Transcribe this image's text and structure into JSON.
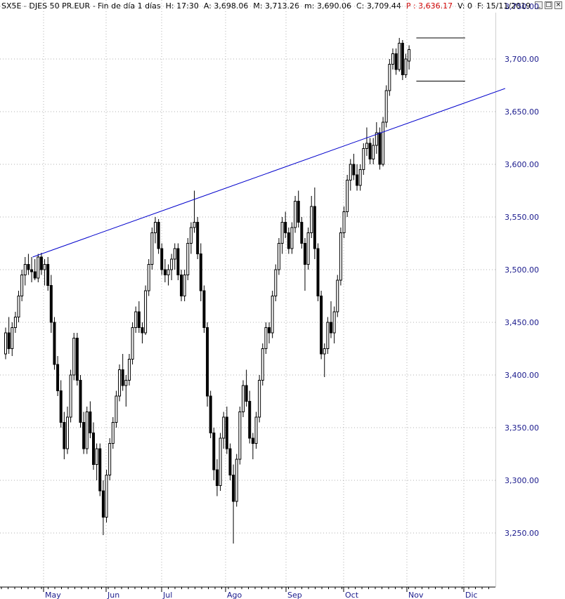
{
  "header": {
    "symbol": "SX5E - DJES 50 PR.EUR - Fin de día 1 días",
    "h": "H: 17:30",
    "a": "A: 3,698.06",
    "m": "M: 3,713.26",
    "mm": "m: 3,690.06",
    "c": "C: 3,709.44",
    "p": "P : 3,636.17",
    "v": "V: 0",
    "f": "F: 15/11/2019"
  },
  "window_buttons": [
    "_",
    "□",
    "×"
  ],
  "colors": {
    "axis_text": "#1a1a8c",
    "trendline": "#0000cc",
    "candle": "#000000",
    "grid": "#b0b0b0"
  },
  "chart_data": {
    "type": "candlestick",
    "y_axis": {
      "min": 3240,
      "max": 3750,
      "ticks": [
        3250,
        3300,
        3350,
        3400,
        3450,
        3500,
        3550,
        3600,
        3650,
        3700,
        3750
      ],
      "side": "right"
    },
    "x_axis": {
      "months": [
        "May",
        "Jun",
        "Jul",
        "Ago",
        "Sep",
        "Oct",
        "Nov",
        "Dic"
      ]
    },
    "grid": true,
    "candles": [
      [
        3420,
        3445,
        3415,
        3440
      ],
      [
        3440,
        3455,
        3420,
        3425
      ],
      [
        3425,
        3450,
        3418,
        3445
      ],
      [
        3445,
        3460,
        3440,
        3455
      ],
      [
        3455,
        3480,
        3450,
        3475
      ],
      [
        3475,
        3500,
        3470,
        3495
      ],
      [
        3495,
        3512,
        3485,
        3505
      ],
      [
        3505,
        3515,
        3495,
        3500
      ],
      [
        3500,
        3512,
        3488,
        3498
      ],
      [
        3498,
        3510,
        3490,
        3492
      ],
      [
        3492,
        3515,
        3488,
        3512
      ],
      [
        3512,
        3516,
        3495,
        3500
      ],
      [
        3500,
        3510,
        3485,
        3505
      ],
      [
        3505,
        3512,
        3480,
        3485
      ],
      [
        3485,
        3495,
        3440,
        3450
      ],
      [
        3450,
        3455,
        3405,
        3410
      ],
      [
        3410,
        3418,
        3380,
        3385
      ],
      [
        3385,
        3395,
        3350,
        3355
      ],
      [
        3355,
        3365,
        3320,
        3330
      ],
      [
        3330,
        3370,
        3325,
        3360
      ],
      [
        3360,
        3405,
        3355,
        3400
      ],
      [
        3400,
        3440,
        3395,
        3435
      ],
      [
        3435,
        3440,
        3390,
        3395
      ],
      [
        3395,
        3400,
        3350,
        3355
      ],
      [
        3355,
        3365,
        3325,
        3330
      ],
      [
        3330,
        3370,
        3325,
        3365
      ],
      [
        3365,
        3375,
        3340,
        3345
      ],
      [
        3345,
        3355,
        3310,
        3315
      ],
      [
        3315,
        3335,
        3300,
        3330
      ],
      [
        3330,
        3335,
        3285,
        3290
      ],
      [
        3290,
        3300,
        3248,
        3265
      ],
      [
        3265,
        3310,
        3260,
        3305
      ],
      [
        3305,
        3340,
        3300,
        3335
      ],
      [
        3335,
        3360,
        3330,
        3355
      ],
      [
        3355,
        3385,
        3350,
        3380
      ],
      [
        3380,
        3410,
        3375,
        3405
      ],
      [
        3405,
        3420,
        3385,
        3390
      ],
      [
        3390,
        3400,
        3370,
        3395
      ],
      [
        3395,
        3420,
        3390,
        3415
      ],
      [
        3415,
        3450,
        3410,
        3445
      ],
      [
        3445,
        3465,
        3440,
        3460
      ],
      [
        3460,
        3470,
        3440,
        3445
      ],
      [
        3445,
        3450,
        3430,
        3440
      ],
      [
        3440,
        3485,
        3438,
        3480
      ],
      [
        3480,
        3510,
        3475,
        3505
      ],
      [
        3505,
        3540,
        3500,
        3535
      ],
      [
        3535,
        3550,
        3525,
        3545
      ],
      [
        3545,
        3548,
        3515,
        3520
      ],
      [
        3520,
        3525,
        3495,
        3500
      ],
      [
        3500,
        3510,
        3488,
        3495
      ],
      [
        3495,
        3505,
        3485,
        3500
      ],
      [
        3500,
        3515,
        3490,
        3510
      ],
      [
        3510,
        3525,
        3500,
        3520
      ],
      [
        3520,
        3525,
        3490,
        3495
      ],
      [
        3495,
        3500,
        3470,
        3475
      ],
      [
        3475,
        3500,
        3470,
        3495
      ],
      [
        3495,
        3530,
        3490,
        3525
      ],
      [
        3525,
        3545,
        3515,
        3540
      ],
      [
        3540,
        3575,
        3535,
        3545
      ],
      [
        3545,
        3550,
        3510,
        3515
      ],
      [
        3515,
        3525,
        3470,
        3480
      ],
      [
        3480,
        3485,
        3440,
        3445
      ],
      [
        3445,
        3450,
        3370,
        3380
      ],
      [
        3380,
        3385,
        3340,
        3345
      ],
      [
        3345,
        3350,
        3300,
        3310
      ],
      [
        3310,
        3320,
        3285,
        3295
      ],
      [
        3295,
        3345,
        3290,
        3340
      ],
      [
        3340,
        3365,
        3330,
        3360
      ],
      [
        3360,
        3370,
        3325,
        3330
      ],
      [
        3330,
        3335,
        3300,
        3305
      ],
      [
        3305,
        3315,
        3240,
        3280
      ],
      [
        3280,
        3325,
        3275,
        3320
      ],
      [
        3320,
        3370,
        3315,
        3365
      ],
      [
        3365,
        3395,
        3360,
        3390
      ],
      [
        3390,
        3405,
        3370,
        3375
      ],
      [
        3375,
        3385,
        3335,
        3340
      ],
      [
        3340,
        3345,
        3320,
        3335
      ],
      [
        3335,
        3365,
        3330,
        3360
      ],
      [
        3360,
        3400,
        3355,
        3395
      ],
      [
        3395,
        3430,
        3390,
        3425
      ],
      [
        3425,
        3450,
        3420,
        3445
      ],
      [
        3445,
        3450,
        3430,
        3440
      ],
      [
        3440,
        3480,
        3435,
        3475
      ],
      [
        3475,
        3505,
        3470,
        3500
      ],
      [
        3500,
        3530,
        3495,
        3525
      ],
      [
        3525,
        3550,
        3515,
        3545
      ],
      [
        3545,
        3555,
        3530,
        3535
      ],
      [
        3535,
        3540,
        3515,
        3520
      ],
      [
        3520,
        3545,
        3515,
        3540
      ],
      [
        3540,
        3570,
        3535,
        3565
      ],
      [
        3565,
        3575,
        3540,
        3545
      ],
      [
        3545,
        3550,
        3520,
        3525
      ],
      [
        3525,
        3530,
        3480,
        3505
      ],
      [
        3505,
        3540,
        3500,
        3535
      ],
      [
        3535,
        3570,
        3530,
        3560
      ],
      [
        3560,
        3578,
        3510,
        3520
      ],
      [
        3520,
        3525,
        3470,
        3475
      ],
      [
        3475,
        3480,
        3415,
        3420
      ],
      [
        3420,
        3430,
        3398,
        3425
      ],
      [
        3425,
        3455,
        3420,
        3450
      ],
      [
        3450,
        3470,
        3435,
        3440
      ],
      [
        3440,
        3465,
        3430,
        3460
      ],
      [
        3460,
        3495,
        3455,
        3490
      ],
      [
        3490,
        3540,
        3485,
        3535
      ],
      [
        3535,
        3560,
        3530,
        3555
      ],
      [
        3555,
        3590,
        3550,
        3585
      ],
      [
        3585,
        3605,
        3575,
        3600
      ],
      [
        3600,
        3610,
        3585,
        3590
      ],
      [
        3590,
        3600,
        3575,
        3580
      ],
      [
        3580,
        3600,
        3575,
        3595
      ],
      [
        3595,
        3620,
        3590,
        3615
      ],
      [
        3615,
        3635,
        3608,
        3620
      ],
      [
        3620,
        3625,
        3600,
        3605
      ],
      [
        3605,
        3625,
        3600,
        3618
      ],
      [
        3618,
        3640,
        3610,
        3630
      ],
      [
        3630,
        3635,
        3595,
        3600
      ],
      [
        3600,
        3645,
        3598,
        3640
      ],
      [
        3640,
        3675,
        3635,
        3670
      ],
      [
        3670,
        3700,
        3665,
        3695
      ],
      [
        3695,
        3710,
        3690,
        3705
      ],
      [
        3705,
        3710,
        3685,
        3690
      ],
      [
        3690,
        3720,
        3688,
        3715
      ],
      [
        3715,
        3718,
        3680,
        3685
      ],
      [
        3685,
        3705,
        3682,
        3700
      ],
      [
        3698,
        3713,
        3690,
        3709
      ]
    ],
    "trendline": {
      "from": [
        4,
        3512
      ],
      "to": [
        160,
        3672
      ]
    },
    "range_box": {
      "from_index": 115,
      "to_index": 130,
      "top": 3720,
      "bottom": 3679
    }
  }
}
